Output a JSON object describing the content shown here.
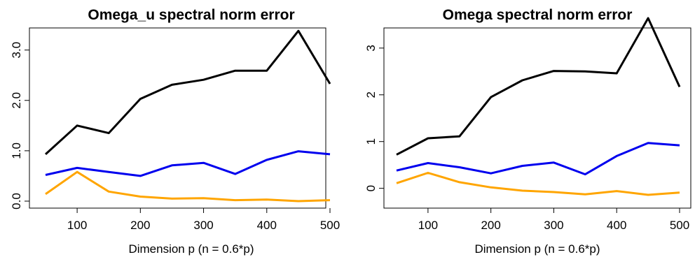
{
  "chart_data": [
    {
      "type": "line",
      "title": "Omega_u spectral norm error",
      "xlabel": "Dimension p (n = 0.6*p)",
      "ylabel": "",
      "xlim": [
        50,
        500
      ],
      "ylim": [
        0,
        3.3
      ],
      "x_ticks": [
        100,
        200,
        300,
        400,
        500
      ],
      "y_ticks": [
        0,
        1,
        2,
        3
      ],
      "y_tick_labels": [
        "0.0",
        "1.0",
        "2.0",
        "3.0"
      ],
      "x": [
        50,
        100,
        150,
        200,
        250,
        300,
        350,
        400,
        450,
        500
      ],
      "series": [
        {
          "color": "#000000",
          "values": [
            0.93,
            1.5,
            1.35,
            2.03,
            2.31,
            2.41,
            2.59,
            2.59,
            3.38,
            2.33
          ]
        },
        {
          "color": "#0000ee",
          "values": [
            0.52,
            0.66,
            0.58,
            0.5,
            0.71,
            0.76,
            0.54,
            0.82,
            0.99,
            0.93
          ]
        },
        {
          "color": "#ffa500",
          "values": [
            0.14,
            0.58,
            0.19,
            0.09,
            0.05,
            0.06,
            0.02,
            0.03,
            0.0,
            0.02
          ]
        }
      ],
      "grid": false,
      "legend": "none"
    },
    {
      "type": "line",
      "title": "Omega spectral norm error",
      "xlabel": "Dimension p (n = 0.6*p)",
      "ylabel": "",
      "xlim": [
        50,
        500
      ],
      "ylim": [
        -0.14,
        3.64
      ],
      "x_ticks": [
        100,
        200,
        300,
        400,
        500
      ],
      "y_ticks": [
        0,
        1,
        2,
        3
      ],
      "y_tick_labels": [
        "0",
        "1",
        "2",
        "3"
      ],
      "x": [
        50,
        100,
        150,
        200,
        250,
        300,
        350,
        400,
        450,
        500
      ],
      "series": [
        {
          "color": "#000000",
          "values": [
            0.72,
            1.07,
            1.11,
            1.95,
            2.31,
            2.51,
            2.5,
            2.46,
            3.64,
            2.17
          ]
        },
        {
          "color": "#0000ee",
          "values": [
            0.38,
            0.54,
            0.45,
            0.32,
            0.48,
            0.55,
            0.3,
            0.69,
            0.97,
            0.92
          ]
        },
        {
          "color": "#ffa500",
          "values": [
            0.11,
            0.33,
            0.13,
            0.02,
            -0.05,
            -0.08,
            -0.13,
            -0.06,
            -0.14,
            -0.09
          ]
        }
      ],
      "grid": false,
      "legend": "none"
    }
  ]
}
